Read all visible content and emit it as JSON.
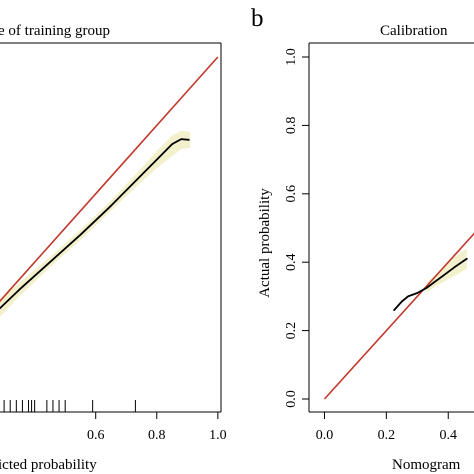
{
  "chart_data": [
    {
      "type": "line",
      "title": "e of training group",
      "xlabel": "icted probability",
      "ylabel": "",
      "xlim": [
        0.28,
        1.03
      ],
      "ylim": [
        -0.05,
        1.05
      ],
      "x_ticks": [
        "0.6",
        "0.8",
        "1.0"
      ],
      "x_tick_values": [
        0.6,
        0.8,
        1.0
      ],
      "grid": false,
      "legend": "none",
      "series": [
        {
          "kind": "reference",
          "color": "#c0392b",
          "x": [
            0.0,
            1.0
          ],
          "y": [
            0.0,
            1.0
          ]
        },
        {
          "kind": "calibration",
          "color": "#000000",
          "x": [
            0.28,
            0.35,
            0.45,
            0.55,
            0.65,
            0.75,
            0.8,
            0.85,
            0.88,
            0.905
          ],
          "y": [
            0.26,
            0.32,
            0.4,
            0.48,
            0.565,
            0.655,
            0.7,
            0.745,
            0.76,
            0.758
          ]
        },
        {
          "kind": "confidence-band",
          "color": "#f3f0cc",
          "x": [
            0.28,
            0.35,
            0.45,
            0.55,
            0.65,
            0.75,
            0.8,
            0.85,
            0.88,
            0.91
          ],
          "upper": [
            0.285,
            0.34,
            0.415,
            0.495,
            0.58,
            0.675,
            0.725,
            0.77,
            0.785,
            0.78
          ],
          "lower": [
            0.235,
            0.3,
            0.385,
            0.465,
            0.55,
            0.635,
            0.675,
            0.71,
            0.73,
            0.735
          ]
        }
      ],
      "rug_x": [
        0.3,
        0.32,
        0.34,
        0.36,
        0.38,
        0.39,
        0.4,
        0.44,
        0.46,
        0.48,
        0.5,
        0.59,
        0.73
      ]
    },
    {
      "type": "line",
      "panel_label": "b",
      "title": "Calibration",
      "xlabel": "Nomogram",
      "ylabel": "Actual probability",
      "xlim": [
        -0.05,
        0.48
      ],
      "ylim": [
        -0.05,
        1.05
      ],
      "x_ticks": [
        "0.0",
        "0.2",
        "0.4"
      ],
      "x_tick_values": [
        0.0,
        0.2,
        0.4
      ],
      "y_ticks": [
        "0.0",
        "0.2",
        "0.4",
        "0.6",
        "0.8",
        "1.0"
      ],
      "y_tick_values": [
        0.0,
        0.2,
        0.4,
        0.6,
        0.8,
        1.0
      ],
      "grid": false,
      "legend": "none",
      "series": [
        {
          "kind": "reference",
          "color": "#c0392b",
          "x": [
            0.0,
            1.0
          ],
          "y": [
            0.0,
            1.0
          ]
        },
        {
          "kind": "calibration",
          "color": "#000000",
          "x": [
            0.225,
            0.25,
            0.27,
            0.3,
            0.33,
            0.36,
            0.39,
            0.42,
            0.46
          ],
          "y": [
            0.26,
            0.285,
            0.3,
            0.31,
            0.325,
            0.345,
            0.365,
            0.385,
            0.41
          ]
        },
        {
          "kind": "confidence-band",
          "color": "#f3f0cc",
          "x": [
            0.33,
            0.36,
            0.39,
            0.42,
            0.46
          ],
          "upper": [
            0.34,
            0.365,
            0.39,
            0.415,
            0.44
          ],
          "lower": [
            0.31,
            0.33,
            0.345,
            0.36,
            0.38
          ]
        }
      ]
    }
  ]
}
